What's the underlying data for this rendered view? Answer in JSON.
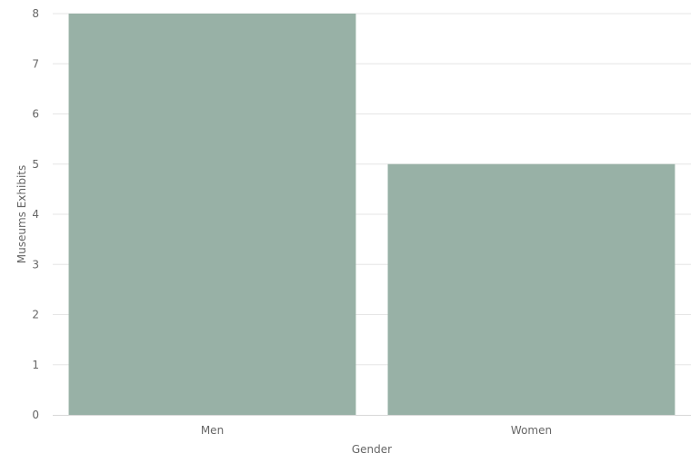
{
  "chart_data": {
    "type": "bar",
    "categories": [
      "Men",
      "Women"
    ],
    "series": [
      {
        "values": [
          8,
          5
        ],
        "color": "#98b1a6"
      }
    ],
    "xlabel": "Gender",
    "ylabel": "Museums Exhibits",
    "ylim": [
      0,
      8
    ],
    "yticks": [
      0,
      1,
      2,
      3,
      4,
      5,
      6,
      7,
      8
    ],
    "grid": true,
    "legend": "none"
  }
}
